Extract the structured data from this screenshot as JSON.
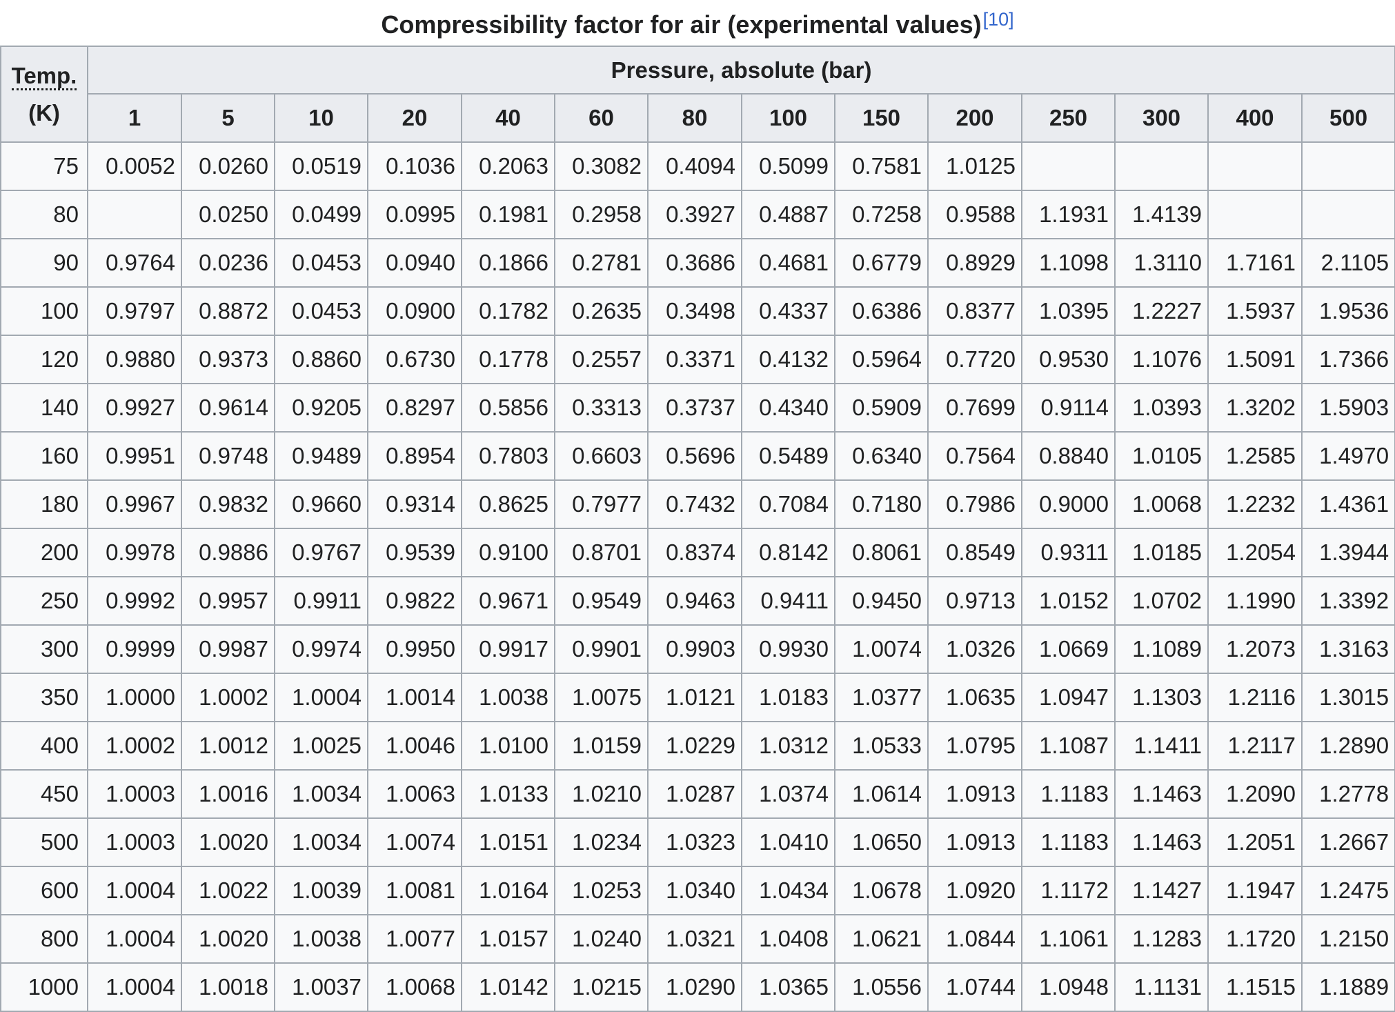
{
  "caption": {
    "title": "Compressibility factor for air (experimental values)",
    "ref": "[10]"
  },
  "header": {
    "temp_label": "Temp.",
    "temp_unit": "(K)",
    "pressure_label": "Pressure, absolute (bar)",
    "pressures": [
      "1",
      "5",
      "10",
      "20",
      "40",
      "60",
      "80",
      "100",
      "150",
      "200",
      "250",
      "300",
      "400",
      "500"
    ]
  },
  "rows": [
    {
      "temp": "75",
      "values": [
        "0.0052",
        "0.0260",
        "0.0519",
        "0.1036",
        "0.2063",
        "0.3082",
        "0.4094",
        "0.5099",
        "0.7581",
        "1.0125",
        "",
        "",
        "",
        ""
      ]
    },
    {
      "temp": "80",
      "values": [
        "",
        "0.0250",
        "0.0499",
        "0.0995",
        "0.1981",
        "0.2958",
        "0.3927",
        "0.4887",
        "0.7258",
        "0.9588",
        "1.1931",
        "1.4139",
        "",
        ""
      ]
    },
    {
      "temp": "90",
      "values": [
        "0.9764",
        "0.0236",
        "0.0453",
        "0.0940",
        "0.1866",
        "0.2781",
        "0.3686",
        "0.4681",
        "0.6779",
        "0.8929",
        "1.1098",
        "1.3110",
        "1.7161",
        "2.1105"
      ]
    },
    {
      "temp": "100",
      "values": [
        "0.9797",
        "0.8872",
        "0.0453",
        "0.0900",
        "0.1782",
        "0.2635",
        "0.3498",
        "0.4337",
        "0.6386",
        "0.8377",
        "1.0395",
        "1.2227",
        "1.5937",
        "1.9536"
      ]
    },
    {
      "temp": "120",
      "values": [
        "0.9880",
        "0.9373",
        "0.8860",
        "0.6730",
        "0.1778",
        "0.2557",
        "0.3371",
        "0.4132",
        "0.5964",
        "0.7720",
        "0.9530",
        "1.1076",
        "1.5091",
        "1.7366"
      ]
    },
    {
      "temp": "140",
      "values": [
        "0.9927",
        "0.9614",
        "0.9205",
        "0.8297",
        "0.5856",
        "0.3313",
        "0.3737",
        "0.4340",
        "0.5909",
        "0.7699",
        "0.9114",
        "1.0393",
        "1.3202",
        "1.5903"
      ]
    },
    {
      "temp": "160",
      "values": [
        "0.9951",
        "0.9748",
        "0.9489",
        "0.8954",
        "0.7803",
        "0.6603",
        "0.5696",
        "0.5489",
        "0.6340",
        "0.7564",
        "0.8840",
        "1.0105",
        "1.2585",
        "1.4970"
      ]
    },
    {
      "temp": "180",
      "values": [
        "0.9967",
        "0.9832",
        "0.9660",
        "0.9314",
        "0.8625",
        "0.7977",
        "0.7432",
        "0.7084",
        "0.7180",
        "0.7986",
        "0.9000",
        "1.0068",
        "1.2232",
        "1.4361"
      ]
    },
    {
      "temp": "200",
      "values": [
        "0.9978",
        "0.9886",
        "0.9767",
        "0.9539",
        "0.9100",
        "0.8701",
        "0.8374",
        "0.8142",
        "0.8061",
        "0.8549",
        "0.9311",
        "1.0185",
        "1.2054",
        "1.3944"
      ]
    },
    {
      "temp": "250",
      "values": [
        "0.9992",
        "0.9957",
        "0.9911",
        "0.9822",
        "0.9671",
        "0.9549",
        "0.9463",
        "0.9411",
        "0.9450",
        "0.9713",
        "1.0152",
        "1.0702",
        "1.1990",
        "1.3392"
      ]
    },
    {
      "temp": "300",
      "values": [
        "0.9999",
        "0.9987",
        "0.9974",
        "0.9950",
        "0.9917",
        "0.9901",
        "0.9903",
        "0.9930",
        "1.0074",
        "1.0326",
        "1.0669",
        "1.1089",
        "1.2073",
        "1.3163"
      ]
    },
    {
      "temp": "350",
      "values": [
        "1.0000",
        "1.0002",
        "1.0004",
        "1.0014",
        "1.0038",
        "1.0075",
        "1.0121",
        "1.0183",
        "1.0377",
        "1.0635",
        "1.0947",
        "1.1303",
        "1.2116",
        "1.3015"
      ]
    },
    {
      "temp": "400",
      "values": [
        "1.0002",
        "1.0012",
        "1.0025",
        "1.0046",
        "1.0100",
        "1.0159",
        "1.0229",
        "1.0312",
        "1.0533",
        "1.0795",
        "1.1087",
        "1.1411",
        "1.2117",
        "1.2890"
      ]
    },
    {
      "temp": "450",
      "values": [
        "1.0003",
        "1.0016",
        "1.0034",
        "1.0063",
        "1.0133",
        "1.0210",
        "1.0287",
        "1.0374",
        "1.0614",
        "1.0913",
        "1.1183",
        "1.1463",
        "1.2090",
        "1.2778"
      ]
    },
    {
      "temp": "500",
      "values": [
        "1.0003",
        "1.0020",
        "1.0034",
        "1.0074",
        "1.0151",
        "1.0234",
        "1.0323",
        "1.0410",
        "1.0650",
        "1.0913",
        "1.1183",
        "1.1463",
        "1.2051",
        "1.2667"
      ]
    },
    {
      "temp": "600",
      "values": [
        "1.0004",
        "1.0022",
        "1.0039",
        "1.0081",
        "1.0164",
        "1.0253",
        "1.0340",
        "1.0434",
        "1.0678",
        "1.0920",
        "1.1172",
        "1.1427",
        "1.1947",
        "1.2475"
      ]
    },
    {
      "temp": "800",
      "values": [
        "1.0004",
        "1.0020",
        "1.0038",
        "1.0077",
        "1.0157",
        "1.0240",
        "1.0321",
        "1.0408",
        "1.0621",
        "1.0844",
        "1.1061",
        "1.1283",
        "1.1720",
        "1.2150"
      ]
    },
    {
      "temp": "1000",
      "values": [
        "1.0004",
        "1.0018",
        "1.0037",
        "1.0068",
        "1.0142",
        "1.0215",
        "1.0290",
        "1.0365",
        "1.0556",
        "1.0744",
        "1.0948",
        "1.1131",
        "1.1515",
        "1.1889"
      ]
    }
  ]
}
